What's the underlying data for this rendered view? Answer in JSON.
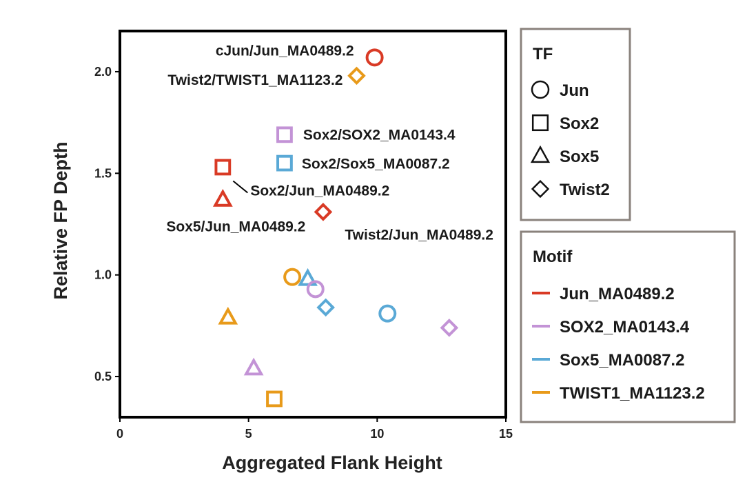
{
  "chart_data": {
    "type": "scatter",
    "xlabel": "Aggregated Flank Height",
    "ylabel": "Relative FP Depth",
    "xlim": [
      0,
      15
    ],
    "ylim": [
      0.3,
      2.2
    ],
    "x_ticks": [
      "0",
      "5",
      "10",
      "15"
    ],
    "y_ticks": [
      "0.5",
      "1.0",
      "1.5",
      "2.0"
    ],
    "grid": false,
    "shape_legend": {
      "title": "TF",
      "placement": "right",
      "items": [
        {
          "label": "Jun",
          "shape": "circle"
        },
        {
          "label": "Sox2",
          "shape": "square"
        },
        {
          "label": "Sox5",
          "shape": "triangle"
        },
        {
          "label": "Twist2",
          "shape": "diamond"
        }
      ]
    },
    "color_legend": {
      "title": "Motif",
      "placement": "right",
      "items": [
        {
          "label": "Jun_MA0489.2",
          "color": "#d93a25"
        },
        {
          "label": "SOX2_MA0143.4",
          "color": "#c393d6"
        },
        {
          "label": "Sox5_MA0087.2",
          "color": "#5aa9d6"
        },
        {
          "label": "TWIST1_MA1123.2",
          "color": "#e89a1a"
        }
      ]
    },
    "points": [
      {
        "tf": "Jun",
        "motif": "Jun_MA0489.2",
        "x": 9.9,
        "y": 2.07,
        "label": "cJun/Jun_MA0489.2"
      },
      {
        "tf": "Twist2",
        "motif": "TWIST1_MA1123.2",
        "x": 9.2,
        "y": 1.98,
        "label": "Twist2/TWIST1_MA1123.2"
      },
      {
        "tf": "Sox2",
        "motif": "SOX2_MA0143.4",
        "x": 6.4,
        "y": 1.69,
        "label": "Sox2/SOX2_MA0143.4"
      },
      {
        "tf": "Sox2",
        "motif": "Sox5_MA0087.2",
        "x": 6.4,
        "y": 1.55,
        "label": "Sox2/Sox5_MA0087.2"
      },
      {
        "tf": "Sox2",
        "motif": "Jun_MA0489.2",
        "x": 4.0,
        "y": 1.53,
        "label": "Sox2/Jun_MA0489.2"
      },
      {
        "tf": "Sox5",
        "motif": "Jun_MA0489.2",
        "x": 4.0,
        "y": 1.37,
        "label": "Sox5/Jun_MA0489.2"
      },
      {
        "tf": "Twist2",
        "motif": "Jun_MA0489.2",
        "x": 7.9,
        "y": 1.31,
        "label": "Twist2/Jun_MA0489.2"
      },
      {
        "tf": "Jun",
        "motif": "TWIST1_MA1123.2",
        "x": 6.7,
        "y": 0.99
      },
      {
        "tf": "Sox5",
        "motif": "Sox5_MA0087.2",
        "x": 7.3,
        "y": 0.98
      },
      {
        "tf": "Jun",
        "motif": "SOX2_MA0143.4",
        "x": 7.6,
        "y": 0.93
      },
      {
        "tf": "Twist2",
        "motif": "Sox5_MA0087.2",
        "x": 8.0,
        "y": 0.84
      },
      {
        "tf": "Jun",
        "motif": "Sox5_MA0087.2",
        "x": 10.4,
        "y": 0.81
      },
      {
        "tf": "Sox5",
        "motif": "TWIST1_MA1123.2",
        "x": 4.2,
        "y": 0.79
      },
      {
        "tf": "Twist2",
        "motif": "SOX2_MA0143.4",
        "x": 12.8,
        "y": 0.74
      },
      {
        "tf": "Sox5",
        "motif": "SOX2_MA0143.4",
        "x": 5.2,
        "y": 0.54
      },
      {
        "tf": "Sox2",
        "motif": "TWIST1_MA1123.2",
        "x": 6.0,
        "y": 0.39
      }
    ]
  }
}
